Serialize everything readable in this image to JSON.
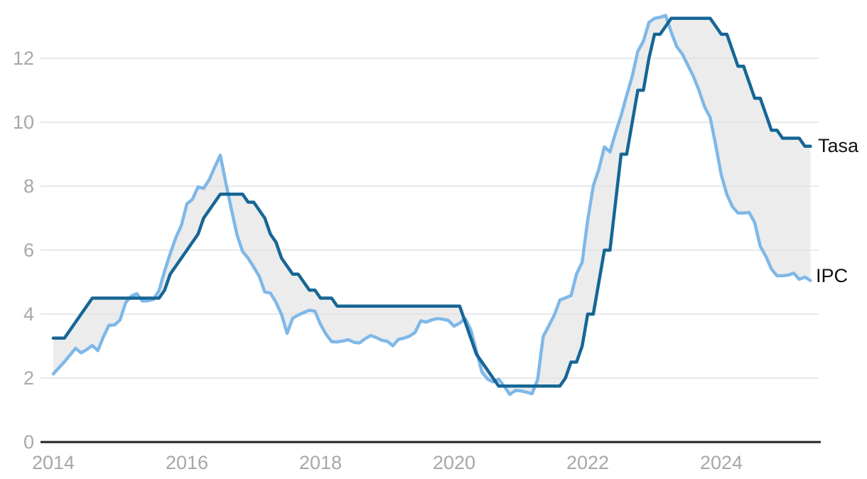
{
  "chart_data": {
    "type": "line",
    "title": "",
    "xlabel": "",
    "ylabel": "",
    "x_axis": {
      "start": "2014-01",
      "frequency": "monthly",
      "tick_years": [
        2014,
        2016,
        2018,
        2020,
        2022,
        2024
      ]
    },
    "y_axis": {
      "ticks": [
        0,
        2,
        4,
        6,
        8,
        10,
        12
      ],
      "range": [
        0,
        13.6
      ]
    },
    "grid": "horizontal",
    "legend_position": "end-of-line-labels",
    "colors": {
      "band": "#ececec",
      "grid": "#e2e2e2",
      "axis": "#222222",
      "tick_text": "#a7a7a7",
      "label_text": "#111111"
    },
    "series": [
      {
        "name": "Tasa",
        "color": "#166695",
        "values": [
          3.25,
          3.25,
          3.25,
          3.5,
          3.75,
          4,
          4.25,
          4.5,
          4.5,
          4.5,
          4.5,
          4.5,
          4.5,
          4.5,
          4.5,
          4.5,
          4.5,
          4.5,
          4.5,
          4.5,
          4.75,
          5.25,
          5.5,
          5.75,
          6,
          6.25,
          6.5,
          7,
          7.25,
          7.5,
          7.75,
          7.75,
          7.75,
          7.75,
          7.75,
          7.5,
          7.5,
          7.25,
          7,
          6.5,
          6.25,
          5.75,
          5.5,
          5.25,
          5.25,
          5,
          4.75,
          4.75,
          4.5,
          4.5,
          4.5,
          4.25,
          4.25,
          4.25,
          4.25,
          4.25,
          4.25,
          4.25,
          4.25,
          4.25,
          4.25,
          4.25,
          4.25,
          4.25,
          4.25,
          4.25,
          4.25,
          4.25,
          4.25,
          4.25,
          4.25,
          4.25,
          4.25,
          4.25,
          3.75,
          3.25,
          2.75,
          2.5,
          2.25,
          2,
          1.75,
          1.75,
          1.75,
          1.75,
          1.75,
          1.75,
          1.75,
          1.75,
          1.75,
          1.75,
          1.75,
          1.75,
          2,
          2.5,
          2.5,
          3,
          4,
          4,
          5,
          6,
          6,
          7.5,
          9,
          9,
          10,
          11,
          11,
          12,
          12.75,
          12.75,
          13,
          13.25,
          13.25,
          13.25,
          13.25,
          13.25,
          13.25,
          13.25,
          13.25,
          13,
          12.75,
          12.75,
          12.25,
          11.75,
          11.75,
          11.25,
          10.75,
          10.75,
          10.25,
          9.75,
          9.75,
          9.5,
          9.5,
          9.5,
          9.5,
          9.25,
          9.25
        ]
      },
      {
        "name": "IPC",
        "color": "#7eb8e8",
        "values": [
          2.13,
          2.32,
          2.51,
          2.72,
          2.93,
          2.79,
          2.89,
          3.02,
          2.86,
          3.29,
          3.65,
          3.66,
          3.82,
          4.36,
          4.56,
          4.64,
          4.41,
          4.42,
          4.46,
          4.74,
          5.35,
          5.89,
          6.39,
          6.77,
          7.45,
          7.59,
          7.98,
          7.93,
          8.2,
          8.6,
          8.97,
          8.1,
          7.27,
          6.48,
          5.96,
          5.75,
          5.47,
          5.18,
          4.69,
          4.66,
          4.37,
          3.99,
          3.4,
          3.87,
          3.97,
          4.05,
          4.12,
          4.09,
          3.68,
          3.37,
          3.14,
          3.13,
          3.16,
          3.2,
          3.12,
          3.1,
          3.23,
          3.33,
          3.27,
          3.18,
          3.15,
          3.01,
          3.21,
          3.25,
          3.31,
          3.43,
          3.79,
          3.75,
          3.82,
          3.86,
          3.84,
          3.8,
          3.62,
          3.72,
          3.86,
          3.51,
          2.85,
          2.19,
          1.97,
          1.88,
          1.97,
          1.75,
          1.49,
          1.61,
          1.6,
          1.56,
          1.51,
          1.95,
          3.3,
          3.63,
          3.97,
          4.44,
          4.51,
          4.58,
          5.26,
          5.62,
          6.94,
          8.01,
          8.53,
          9.23,
          9.07,
          9.67,
          10.21,
          10.84,
          11.44,
          12.22,
          12.53,
          13.12,
          13.25,
          13.28,
          13.34,
          12.82,
          12.36,
          12.13,
          11.78,
          11.43,
          10.99,
          10.48,
          10.15,
          9.28,
          8.35,
          7.74,
          7.36,
          7.16,
          7.16,
          7.18,
          6.86,
          6.12,
          5.81,
          5.41,
          5.2,
          5.2,
          5.22,
          5.28,
          5.09,
          5.16,
          5.05
        ]
      }
    ]
  }
}
